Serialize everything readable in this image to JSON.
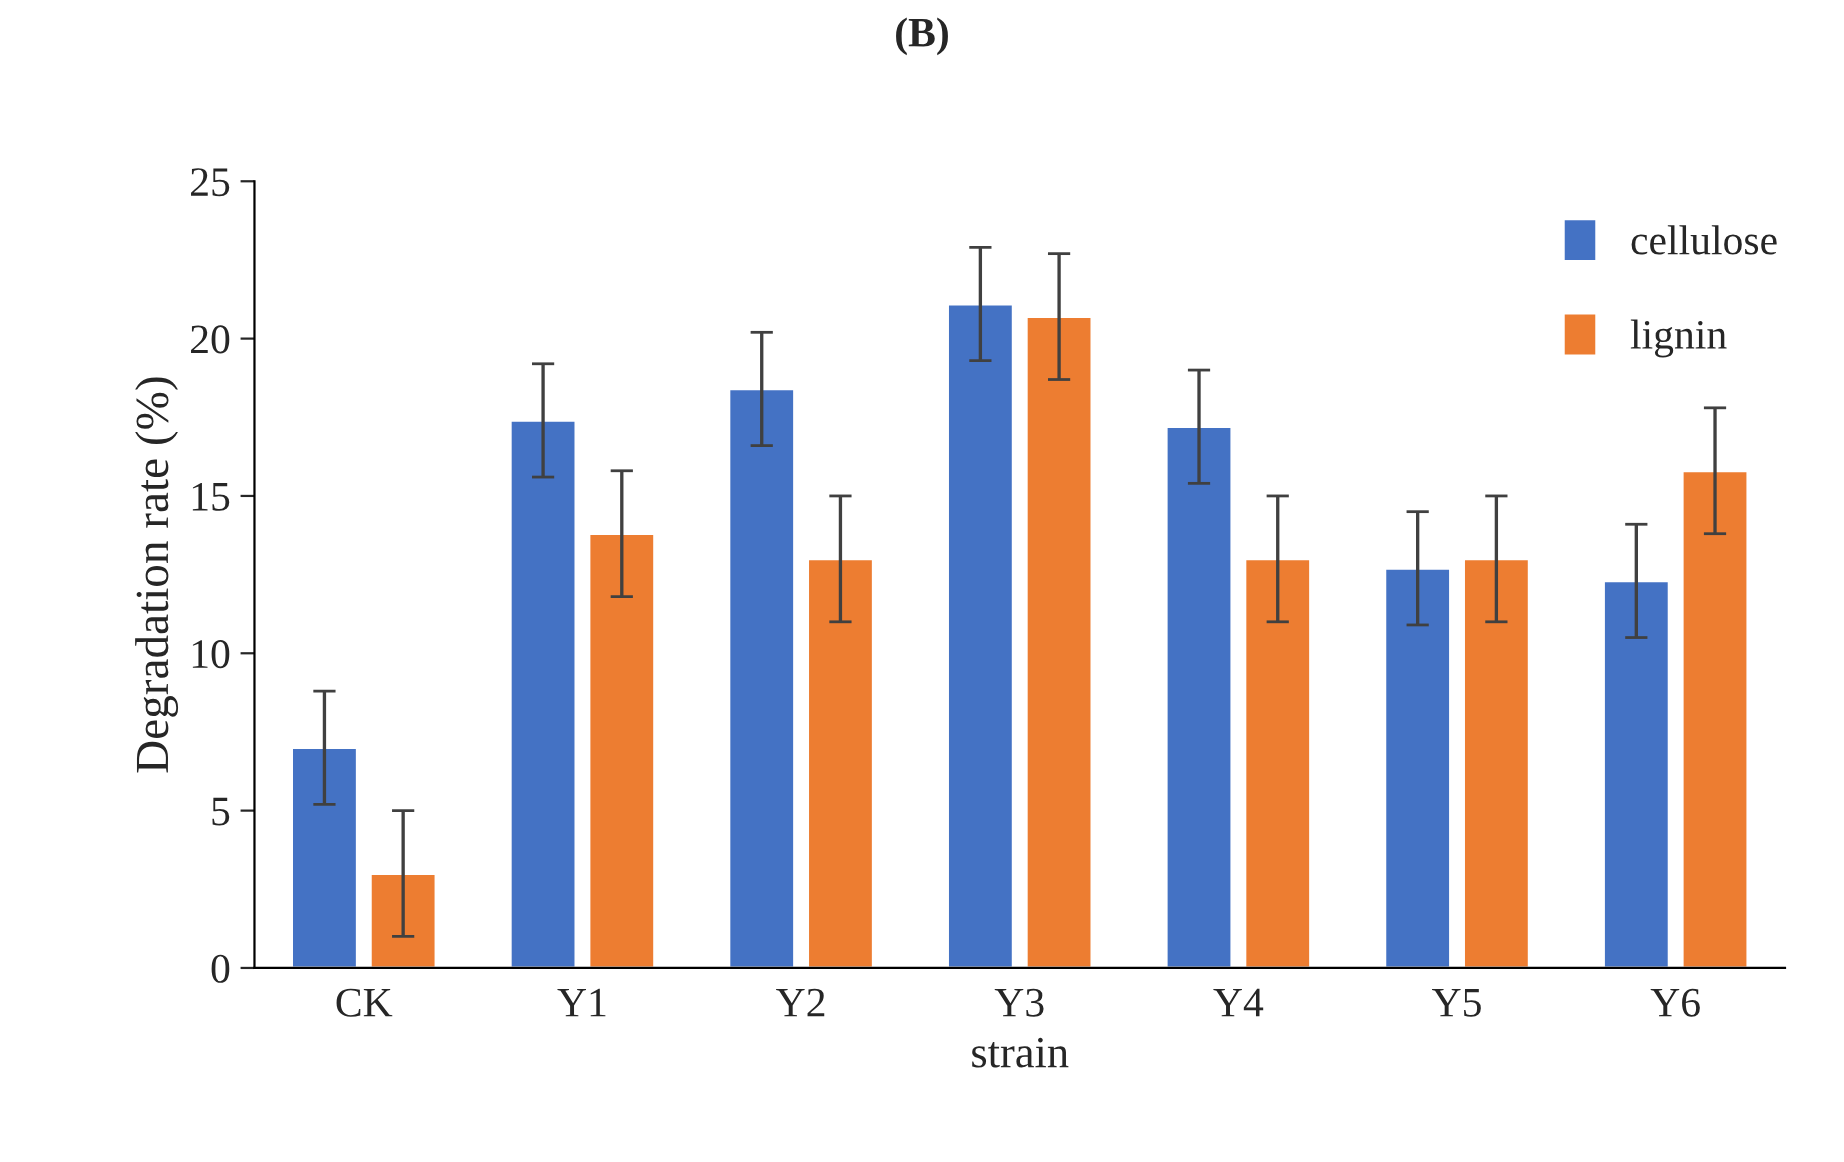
{
  "chart_data": {
    "type": "bar",
    "title": "(B)",
    "xlabel": "strain",
    "ylabel": "Degradation rate (%)",
    "categories": [
      "CK",
      "Y1",
      "Y2",
      "Y3",
      "Y4",
      "Y5",
      "Y6"
    ],
    "series": [
      {
        "name": "cellulose",
        "color": "#4472c4",
        "values": [
          7.0,
          17.4,
          18.4,
          21.1,
          17.2,
          12.7,
          12.3
        ],
        "errors": [
          1.8,
          1.8,
          1.8,
          1.8,
          1.8,
          1.8,
          1.8
        ]
      },
      {
        "name": "lignin",
        "color": "#ed7d31",
        "values": [
          3.0,
          13.8,
          13.0,
          20.7,
          13.0,
          13.0,
          15.8
        ],
        "errors": [
          2,
          2,
          2,
          2,
          2,
          2,
          2
        ]
      }
    ],
    "ylim": [
      0,
      25
    ],
    "yticks": [
      0,
      5,
      10,
      15,
      20,
      25
    ],
    "grid": false,
    "legend": "top right"
  }
}
